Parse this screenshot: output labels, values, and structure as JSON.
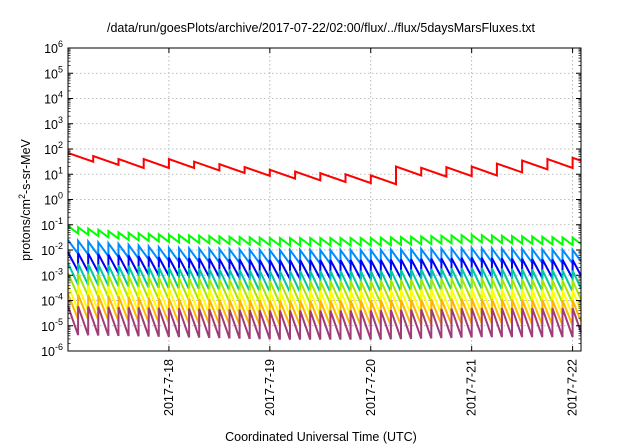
{
  "chart_data": {
    "type": "line",
    "title": "/data/run/goesPlots/archive/2017-07-22/02:00/flux/../flux/5daysMarsFluxes.txt",
    "xlabel": "Coordinated Universal Time (UTC)",
    "ylabel": "protons/cm2-s-sr-MeV",
    "ylabel_parts": {
      "pre": "protons/cm",
      "sup": "2",
      "post": "-s-sr-MeV"
    },
    "yscale": "log",
    "ylim": [
      1e-06,
      1000000.0
    ],
    "y_ticks": [
      {
        "base": "10",
        "exp": "-6",
        "value": 1e-06
      },
      {
        "base": "10",
        "exp": "-5",
        "value": 1e-05
      },
      {
        "base": "10",
        "exp": "-4",
        "value": 0.0001
      },
      {
        "base": "10",
        "exp": "-3",
        "value": 0.001
      },
      {
        "base": "10",
        "exp": "-2",
        "value": 0.01
      },
      {
        "base": "10",
        "exp": "-1",
        "value": 0.1
      },
      {
        "base": "10",
        "exp": "0",
        "value": 1
      },
      {
        "base": "10",
        "exp": "1",
        "value": 10
      },
      {
        "base": "10",
        "exp": "2",
        "value": 100
      },
      {
        "base": "10",
        "exp": "3",
        "value": 1000
      },
      {
        "base": "10",
        "exp": "4",
        "value": 10000
      },
      {
        "base": "10",
        "exp": "5",
        "value": 100000
      },
      {
        "base": "10",
        "exp": "6",
        "value": 1000000
      }
    ],
    "xlim": [
      "2017-07-17T00:00",
      "2017-07-22T02:00"
    ],
    "x_ticks": [
      {
        "label": "2017-7-18",
        "value": "2017-07-18T00:00"
      },
      {
        "label": "2017-7-19",
        "value": "2017-07-19T00:00"
      },
      {
        "label": "2017-7-20",
        "value": "2017-07-20T00:00"
      },
      {
        "label": "2017-7-21",
        "value": "2017-07-21T00:00"
      },
      {
        "label": "2017-7-22",
        "value": "2017-07-22T00:00"
      }
    ],
    "grid": true,
    "legend": "none",
    "sawtooth_cycle_hours": 2.4,
    "series": [
      {
        "color": "#ff0000",
        "cycle_hours": 6.0,
        "drop_decades": 0.35,
        "envelope": [
          {
            "t": "2017-07-17T00:00",
            "v": 70
          },
          {
            "t": "2017-07-17T12:00",
            "v": 40
          },
          {
            "t": "2017-07-18T00:00",
            "v": 40
          },
          {
            "t": "2017-07-18T12:00",
            "v": 25
          },
          {
            "t": "2017-07-19T00:00",
            "v": 15
          },
          {
            "t": "2017-07-19T12:00",
            "v": 11
          },
          {
            "t": "2017-07-20T00:00",
            "v": 9
          },
          {
            "t": "2017-07-20T06:00",
            "v": 20
          },
          {
            "t": "2017-07-20T12:00",
            "v": 18
          },
          {
            "t": "2017-07-21T00:00",
            "v": 20
          },
          {
            "t": "2017-07-21T12:00",
            "v": 35
          },
          {
            "t": "2017-07-22T00:00",
            "v": 45
          },
          {
            "t": "2017-07-22T02:00",
            "v": 55
          }
        ]
      },
      {
        "color": "#00ff00",
        "cycle_hours": 2.4,
        "drop_decades": 0.3,
        "envelope": [
          {
            "t": "2017-07-17T00:00",
            "v": 0.09
          },
          {
            "t": "2017-07-17T12:00",
            "v": 0.05
          },
          {
            "t": "2017-07-18T00:00",
            "v": 0.04
          },
          {
            "t": "2017-07-19T00:00",
            "v": 0.03
          },
          {
            "t": "2017-07-20T00:00",
            "v": 0.03
          },
          {
            "t": "2017-07-21T00:00",
            "v": 0.04
          },
          {
            "t": "2017-07-22T02:00",
            "v": 0.03
          }
        ]
      },
      {
        "color": "#008cff",
        "cycle_hours": 2.4,
        "drop_decades": 0.55,
        "envelope": [
          {
            "t": "2017-07-17T00:00",
            "v": 0.025
          },
          {
            "t": "2017-07-18T00:00",
            "v": 0.012
          },
          {
            "t": "2017-07-19T00:00",
            "v": 0.01
          },
          {
            "t": "2017-07-20T00:00",
            "v": 0.01
          },
          {
            "t": "2017-07-21T00:00",
            "v": 0.012
          },
          {
            "t": "2017-07-22T02:00",
            "v": 0.01
          }
        ]
      },
      {
        "color": "#0000ff",
        "cycle_hours": 2.4,
        "drop_decades": 0.75,
        "envelope": [
          {
            "t": "2017-07-17T00:00",
            "v": 0.008
          },
          {
            "t": "2017-07-18T00:00",
            "v": 0.005
          },
          {
            "t": "2017-07-19T00:00",
            "v": 0.004
          },
          {
            "t": "2017-07-20T00:00",
            "v": 0.004
          },
          {
            "t": "2017-07-21T00:00",
            "v": 0.005
          },
          {
            "t": "2017-07-22T02:00",
            "v": 0.004
          }
        ]
      },
      {
        "color": "#00c8a0",
        "cycle_hours": 2.4,
        "drop_decades": 0.85,
        "envelope": [
          {
            "t": "2017-07-17T00:00",
            "v": 0.003
          },
          {
            "t": "2017-07-18T00:00",
            "v": 0.002
          },
          {
            "t": "2017-07-19T00:00",
            "v": 0.0015
          },
          {
            "t": "2017-07-20T00:00",
            "v": 0.0015
          },
          {
            "t": "2017-07-21T00:00",
            "v": 0.002
          },
          {
            "t": "2017-07-22T02:00",
            "v": 0.0015
          }
        ]
      },
      {
        "color": "#a6e600",
        "cycle_hours": 2.4,
        "drop_decades": 0.9,
        "envelope": [
          {
            "t": "2017-07-17T00:00",
            "v": 0.0012
          },
          {
            "t": "2017-07-18T00:00",
            "v": 0.0008
          },
          {
            "t": "2017-07-19T00:00",
            "v": 0.0006
          },
          {
            "t": "2017-07-20T00:00",
            "v": 0.0006
          },
          {
            "t": "2017-07-21T00:00",
            "v": 0.0008
          },
          {
            "t": "2017-07-22T02:00",
            "v": 0.0006
          }
        ]
      },
      {
        "color": "#ffff00",
        "cycle_hours": 2.4,
        "drop_decades": 1.0,
        "envelope": [
          {
            "t": "2017-07-17T00:00",
            "v": 0.0004
          },
          {
            "t": "2017-07-18T00:00",
            "v": 0.0003
          },
          {
            "t": "2017-07-19T00:00",
            "v": 0.00025
          },
          {
            "t": "2017-07-20T00:00",
            "v": 0.00025
          },
          {
            "t": "2017-07-21T00:00",
            "v": 0.0003
          },
          {
            "t": "2017-07-22T02:00",
            "v": 0.00025
          }
        ]
      },
      {
        "color": "#ffb400",
        "cycle_hours": 2.4,
        "drop_decades": 1.0,
        "envelope": [
          {
            "t": "2017-07-17T00:00",
            "v": 0.00018
          },
          {
            "t": "2017-07-18T00:00",
            "v": 0.00012
          },
          {
            "t": "2017-07-19T00:00",
            "v": 0.0001
          },
          {
            "t": "2017-07-20T00:00",
            "v": 0.0001
          },
          {
            "t": "2017-07-21T00:00",
            "v": 0.00012
          },
          {
            "t": "2017-07-22T02:00",
            "v": 0.0001
          }
        ]
      },
      {
        "color": "#a03c78",
        "cycle_hours": 2.4,
        "drop_decades": 1.15,
        "envelope": [
          {
            "t": "2017-07-17T00:00",
            "v": 6e-05
          },
          {
            "t": "2017-07-18T00:00",
            "v": 5e-05
          },
          {
            "t": "2017-07-19T00:00",
            "v": 4e-05
          },
          {
            "t": "2017-07-20T00:00",
            "v": 4e-05
          },
          {
            "t": "2017-07-21T00:00",
            "v": 5e-05
          },
          {
            "t": "2017-07-22T02:00",
            "v": 5e-05
          }
        ]
      }
    ]
  }
}
